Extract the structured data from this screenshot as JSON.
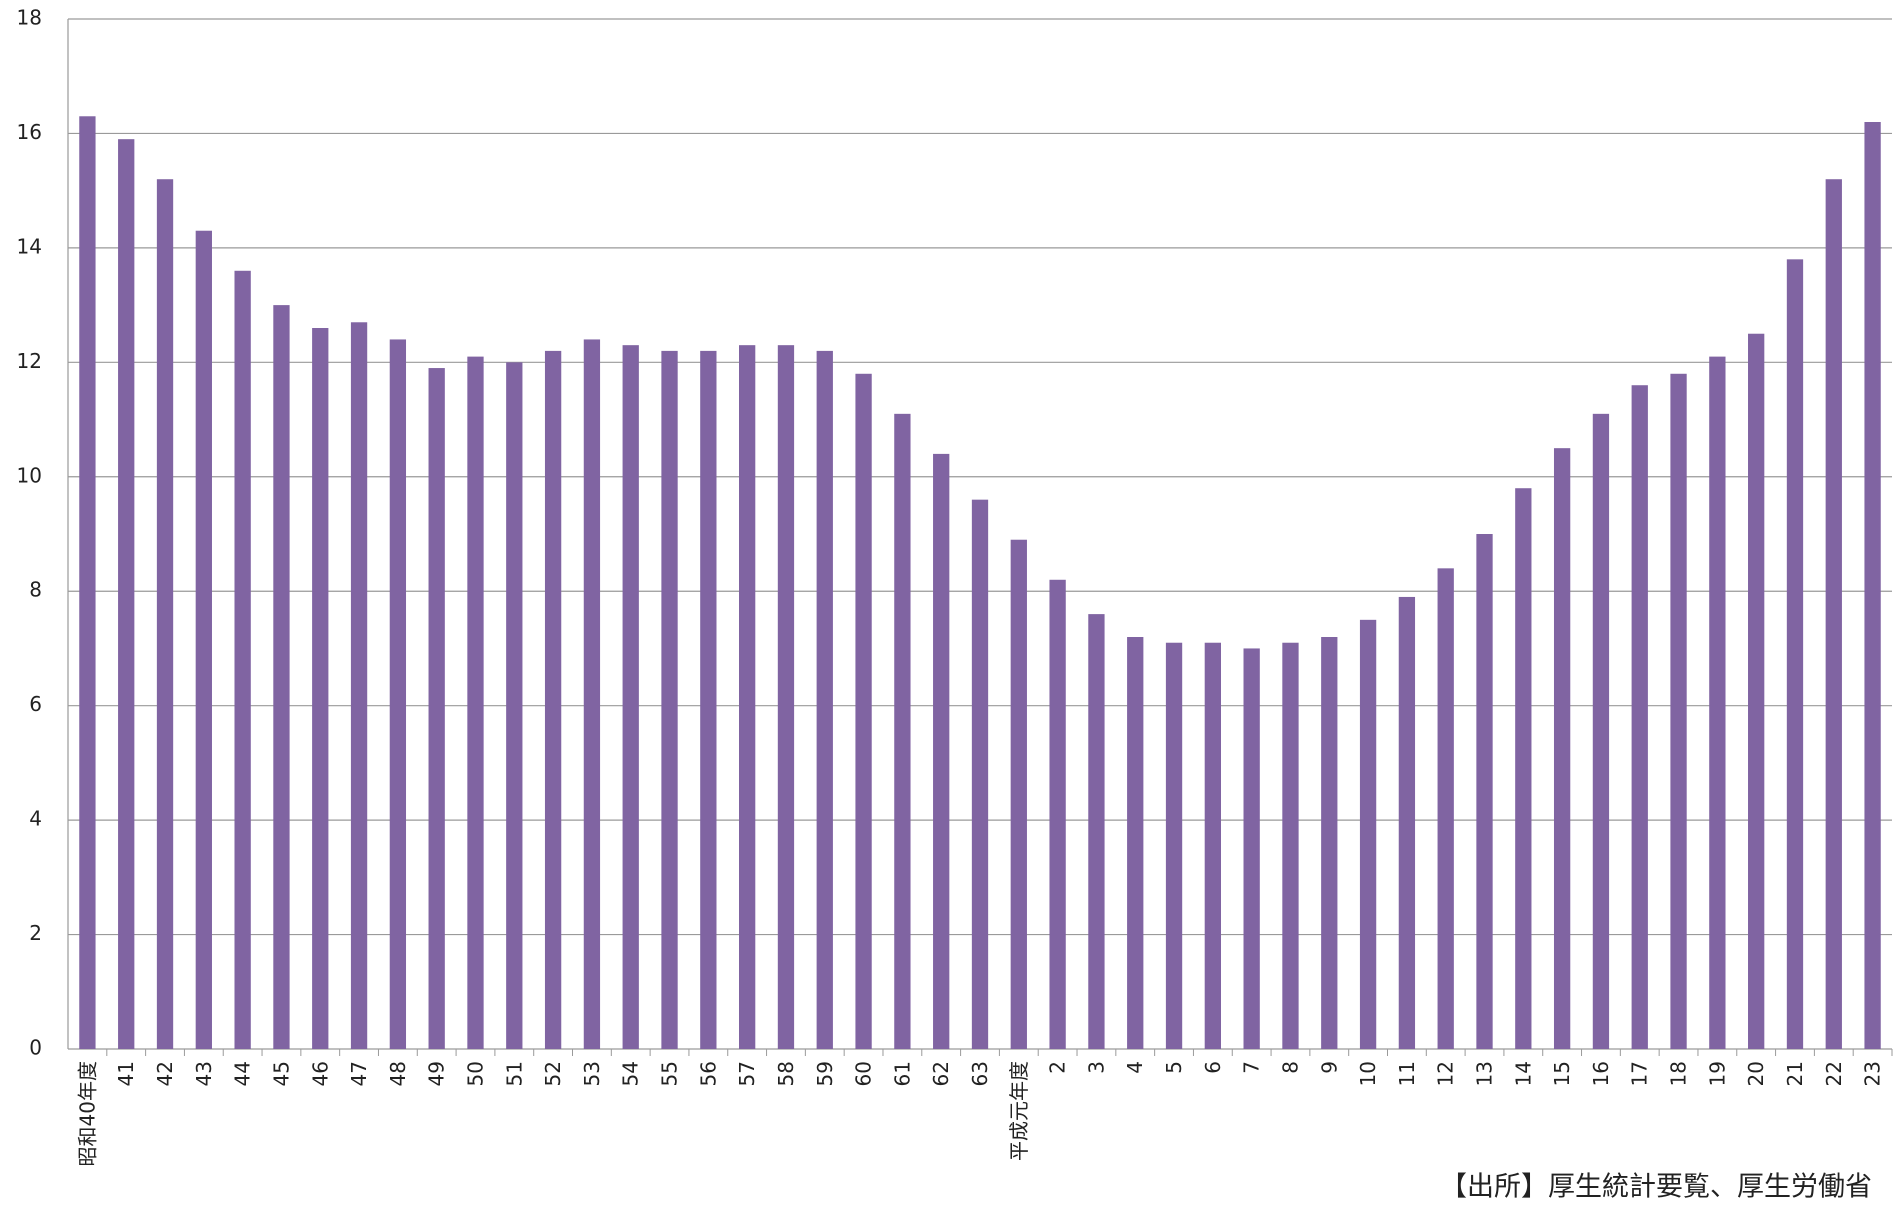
{
  "chart_data": {
    "type": "bar",
    "source": "【出所】厚生統計要覧、厚生労働省",
    "categories": [
      "昭和40年度",
      "41",
      "42",
      "43",
      "44",
      "45",
      "46",
      "47",
      "48",
      "49",
      "50",
      "51",
      "52",
      "53",
      "54",
      "55",
      "56",
      "57",
      "58",
      "59",
      "60",
      "61",
      "62",
      "63",
      "平成元年度",
      "2",
      "3",
      "4",
      "5",
      "6",
      "7",
      "8",
      "9",
      "10",
      "11",
      "12",
      "13",
      "14",
      "15",
      "16",
      "17",
      "18",
      "19",
      "20",
      "21",
      "22",
      "23"
    ],
    "values": [
      16.3,
      15.9,
      15.2,
      14.3,
      13.6,
      13.0,
      12.6,
      12.7,
      12.4,
      11.9,
      12.1,
      12.0,
      12.2,
      12.4,
      12.3,
      12.2,
      12.2,
      12.3,
      12.3,
      12.2,
      11.8,
      11.1,
      10.4,
      9.6,
      8.9,
      8.2,
      7.6,
      7.2,
      7.1,
      7.1,
      7.0,
      7.1,
      7.2,
      7.5,
      7.9,
      8.4,
      9.0,
      9.8,
      10.5,
      11.1,
      11.6,
      11.8,
      12.1,
      12.5,
      13.8,
      15.2,
      16.2
    ],
    "color": "#8064a2",
    "ylim": [
      0,
      18
    ],
    "yticks": [
      0,
      2,
      4,
      6,
      8,
      10,
      12,
      14,
      16,
      18
    ],
    "grid": true
  }
}
